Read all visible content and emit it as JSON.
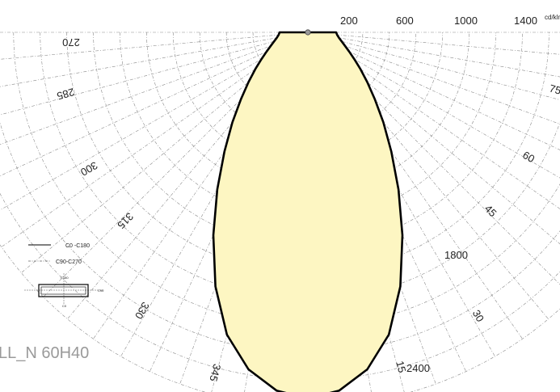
{
  "product_label": "LL_N 60H40",
  "chart_data": {
    "type": "polar",
    "unit": "cd/klm",
    "radial_max": 2600,
    "radial_grid_step": 200,
    "radial_tick_labels": [
      {
        "value": 200,
        "label": "200"
      },
      {
        "value": 600,
        "label": "600"
      },
      {
        "value": 1000,
        "label": "1000"
      },
      {
        "value": 1400,
        "label": "1400"
      },
      {
        "value": 1800,
        "label": "1800"
      },
      {
        "value": 2400,
        "label": "2400"
      }
    ],
    "angle_grid_step": 5,
    "angle_labels": [
      {
        "angle": 270,
        "label": "270"
      },
      {
        "angle": 285,
        "label": "285"
      },
      {
        "angle": 300,
        "label": "300"
      },
      {
        "angle": 315,
        "label": "315"
      },
      {
        "angle": 330,
        "label": "330"
      },
      {
        "angle": 345,
        "label": "345"
      },
      {
        "angle": 15,
        "label": "15"
      },
      {
        "angle": 30,
        "label": "30"
      },
      {
        "angle": 45,
        "label": "45"
      },
      {
        "angle": 60,
        "label": "60"
      },
      {
        "angle": 75,
        "label": "75"
      }
    ],
    "legend": [
      {
        "name": "C0 -C180",
        "style": "solid"
      },
      {
        "name": "C90-C270",
        "style": "dash-dot"
      }
    ],
    "luminaire_symbol_labels": {
      "top": "C180",
      "right": "C90",
      "bottom": "C0"
    },
    "series": [
      {
        "name": "C0 -C180",
        "angles": [
          0,
          5,
          10,
          15,
          20,
          25,
          30,
          35,
          40,
          45,
          50,
          55,
          60,
          65,
          70,
          75,
          80,
          85,
          90
        ],
        "values": [
          2540,
          2490,
          2360,
          2140,
          1820,
          1470,
          1150,
          880,
          670,
          500,
          370,
          270,
          190,
          130,
          85,
          50,
          25,
          8,
          0
        ]
      },
      {
        "name": "C90-C270",
        "angles": [
          0,
          5,
          10,
          15,
          20,
          25,
          30,
          35,
          40,
          45,
          50,
          55,
          60,
          65,
          70,
          75,
          80,
          85,
          90
        ],
        "values": [
          2540,
          2490,
          2360,
          2140,
          1820,
          1470,
          1150,
          880,
          670,
          500,
          370,
          270,
          190,
          130,
          85,
          50,
          25,
          8,
          0
        ]
      }
    ]
  }
}
